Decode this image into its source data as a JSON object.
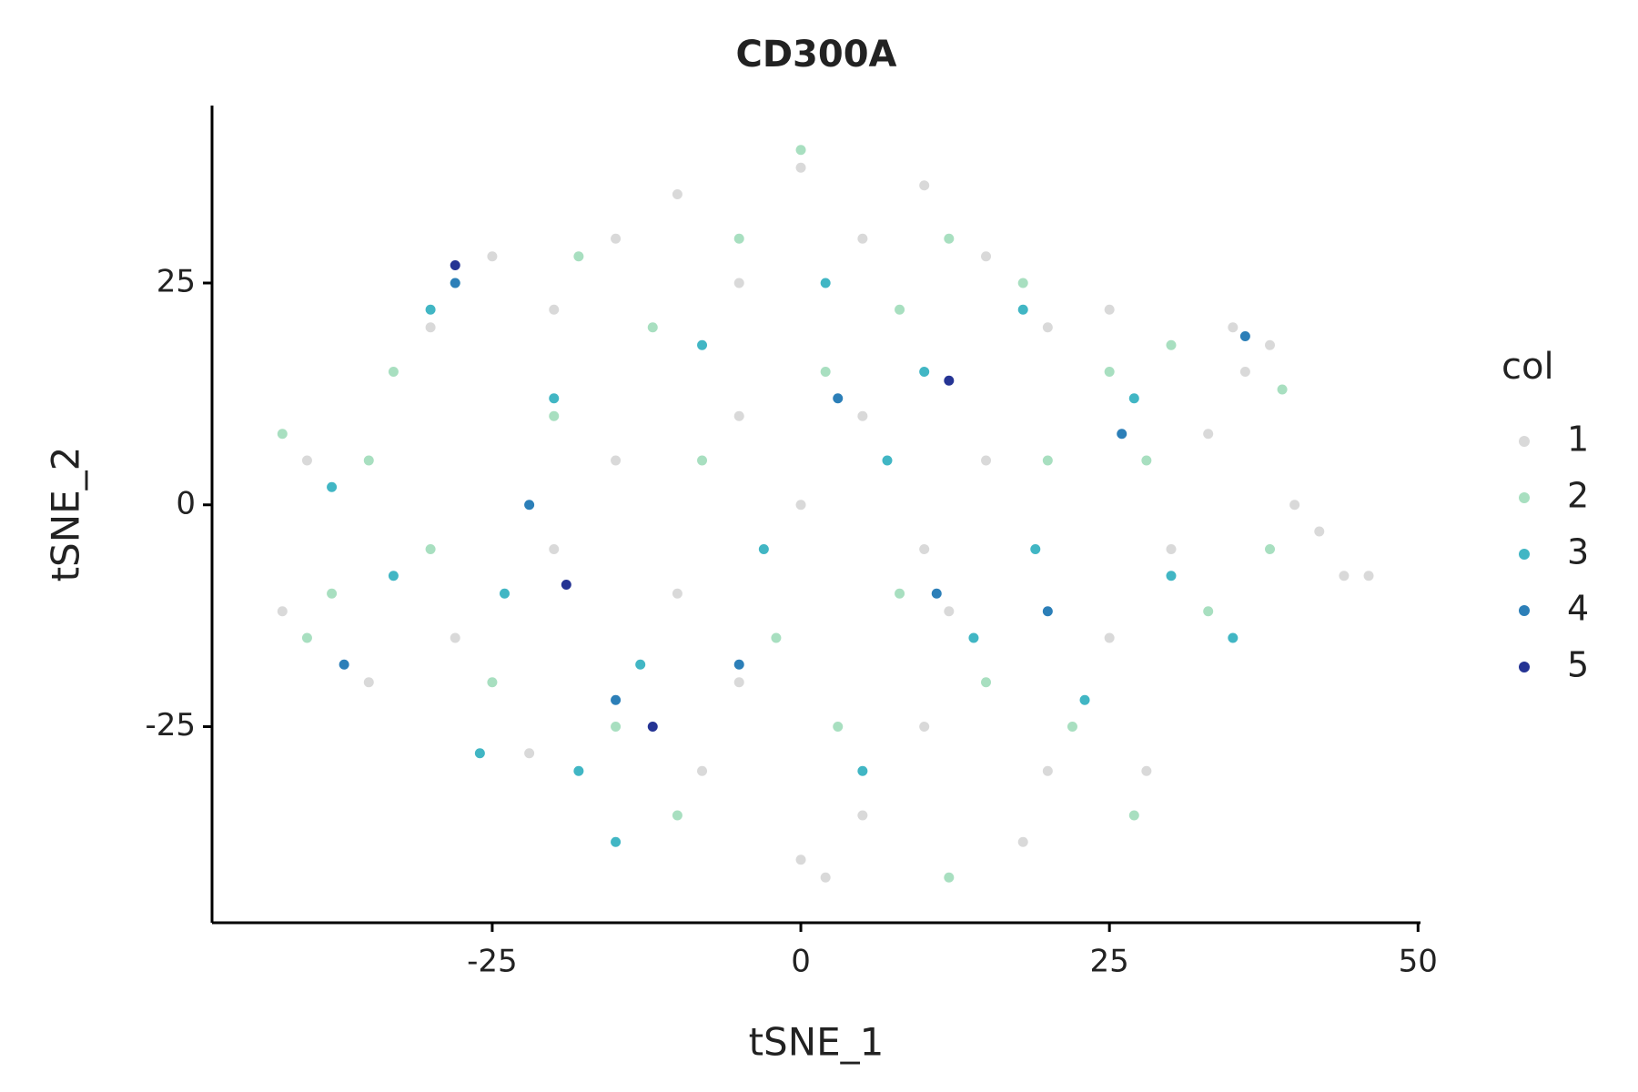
{
  "chart_data": {
    "type": "scatter",
    "title": "CD300A",
    "x_label": "tSNE_1",
    "y_label": "tSNE_2",
    "legend_title": "col",
    "xlim": [
      -47.7,
      50.2
    ],
    "xticks": [
      -25,
      0,
      25,
      50
    ],
    "ylim": [
      -47.1,
      45
    ],
    "yticks": [
      -25,
      0,
      25
    ],
    "legend_position": "right",
    "grid": false,
    "series": [
      {
        "name": "1",
        "color": "#d9d9d9",
        "x": [
          -40,
          -42,
          -35,
          -30,
          -25,
          -20,
          -15,
          -10,
          -5,
          0,
          5,
          10,
          15,
          20,
          25,
          35,
          38,
          36,
          40,
          44,
          46,
          42,
          30,
          25,
          20,
          18,
          10,
          5,
          2,
          0,
          -5,
          -10,
          -15,
          -20,
          -28,
          -22,
          0,
          5,
          10,
          15,
          -5,
          28,
          12,
          -8,
          33
        ],
        "y": [
          5,
          -12,
          -20,
          20,
          28,
          22,
          30,
          35,
          25,
          38,
          30,
          36,
          28,
          20,
          22,
          20,
          18,
          15,
          0,
          -8,
          -8,
          -3,
          -5,
          -15,
          -30,
          -38,
          -25,
          -35,
          -42,
          -40,
          -20,
          -10,
          5,
          -5,
          -15,
          -28,
          0,
          10,
          -5,
          5,
          10,
          -30,
          -12,
          -30,
          8
        ]
      },
      {
        "name": "2",
        "color": "#a8dfc0",
        "x": [
          -42,
          -38,
          -33,
          -28,
          -18,
          -12,
          -5,
          0,
          8,
          12,
          18,
          25,
          30,
          -40,
          -30,
          -25,
          -15,
          -10,
          -2,
          3,
          8,
          15,
          22,
          27,
          33,
          38,
          -20,
          -8,
          2,
          20,
          28,
          12,
          -35,
          39
        ],
        "y": [
          8,
          -10,
          15,
          25,
          28,
          20,
          30,
          40,
          22,
          30,
          25,
          15,
          18,
          -15,
          -5,
          -20,
          -25,
          -35,
          -15,
          -25,
          -10,
          -20,
          -25,
          -35,
          -12,
          -5,
          10,
          5,
          15,
          5,
          5,
          -42,
          5,
          13
        ]
      },
      {
        "name": "3",
        "color": "#41b6c4",
        "x": [
          -38,
          -33,
          -30,
          -24,
          -20,
          -18,
          -13,
          -8,
          -3,
          2,
          7,
          10,
          14,
          19,
          23,
          27,
          30,
          35,
          -26,
          5,
          -15,
          18
        ],
        "y": [
          2,
          -8,
          22,
          -10,
          12,
          -30,
          -18,
          18,
          -5,
          25,
          5,
          15,
          -15,
          -5,
          -22,
          12,
          -8,
          -15,
          -28,
          -30,
          -38,
          22
        ]
      },
      {
        "name": "4",
        "color": "#2c7fb8",
        "x": [
          -37,
          -22,
          -15,
          -5,
          3,
          11,
          20,
          26,
          36,
          -28
        ],
        "y": [
          -18,
          0,
          -22,
          -18,
          12,
          -10,
          -12,
          8,
          19,
          25
        ]
      },
      {
        "name": "5",
        "color": "#253494",
        "x": [
          -19,
          -28,
          -12,
          12
        ],
        "y": [
          -9,
          27,
          -25,
          14
        ]
      }
    ]
  }
}
